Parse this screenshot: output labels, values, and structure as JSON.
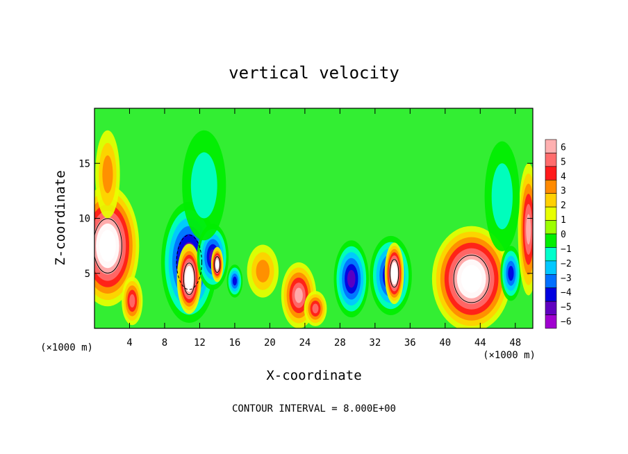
{
  "chart_data": {
    "type": "heatmap",
    "title": "vertical velocity",
    "xlabel": "X-coordinate",
    "ylabel": "Z-coordinate",
    "x_unit_left": "(×1000 m)",
    "x_unit_right": "(×1000 m)",
    "x_ticks": [
      4,
      8,
      12,
      16,
      20,
      24,
      28,
      32,
      36,
      40,
      44,
      48
    ],
    "y_ticks": [
      5,
      10,
      15
    ],
    "xlim": [
      0,
      50
    ],
    "ylim": [
      0,
      20
    ],
    "footer": "CONTOUR INTERVAL = 8.000E+00",
    "colorbar": {
      "labels": [
        "6",
        "5",
        "4",
        "3",
        "2",
        "1",
        "0",
        "−1",
        "−2",
        "−3",
        "−4",
        "−5",
        "−6"
      ],
      "values": [
        6,
        5,
        4,
        3,
        2,
        1,
        0,
        -1,
        -2,
        -3,
        -4,
        -5,
        -6
      ],
      "colors": [
        "#ffb0b0",
        "#ff6c6c",
        "#ff1a1a",
        "#ff8a00",
        "#ffd000",
        "#e8ff00",
        "#9cff00",
        "#00ee00",
        "#00ffcc",
        "#00c8ff",
        "#0070ff",
        "#0000e0",
        "#6000c0",
        "#a000d0"
      ]
    },
    "field_background": "#33ee33",
    "features": [
      {
        "kind": "updraft",
        "x": 1.5,
        "z": 7.5,
        "dx": 3.6,
        "dz": 5.5,
        "peak": 9
      },
      {
        "kind": "updraft",
        "x": 4.3,
        "z": 2.5,
        "dx": 1.2,
        "dz": 2.2,
        "peak": 5
      },
      {
        "kind": "downdraft",
        "x": 10.8,
        "z": 6.0,
        "dx": 3.2,
        "dz": 5.5,
        "peak": -7
      },
      {
        "kind": "core",
        "x": 10.8,
        "z": 4.5,
        "dx": 1.4,
        "dz": 3.2,
        "peak": 9
      },
      {
        "kind": "downdraft",
        "x": 13.5,
        "z": 6.5,
        "dx": 1.8,
        "dz": 3.0,
        "peak": -6
      },
      {
        "kind": "core",
        "x": 14.0,
        "z": 5.8,
        "dx": 0.7,
        "dz": 1.6,
        "peak": 8
      },
      {
        "kind": "downdraft",
        "x": 16.0,
        "z": 4.3,
        "dx": 0.9,
        "dz": 1.5,
        "peak": -5
      },
      {
        "kind": "updraft",
        "x": 19.2,
        "z": 5.2,
        "dx": 1.8,
        "dz": 2.4,
        "peak": 3
      },
      {
        "kind": "updraft",
        "x": 23.3,
        "z": 3.0,
        "dx": 2.0,
        "dz": 3.0,
        "peak": 6
      },
      {
        "kind": "updraft",
        "x": 25.2,
        "z": 1.8,
        "dx": 1.3,
        "dz": 1.6,
        "peak": 5
      },
      {
        "kind": "downdraft",
        "x": 29.3,
        "z": 4.5,
        "dx": 2.0,
        "dz": 3.5,
        "peak": -6
      },
      {
        "kind": "downdraft",
        "x": 33.8,
        "z": 4.8,
        "dx": 2.4,
        "dz": 3.6,
        "peak": -6
      },
      {
        "kind": "core",
        "x": 34.2,
        "z": 5.0,
        "dx": 1.1,
        "dz": 2.8,
        "peak": 9
      },
      {
        "kind": "updraft",
        "x": 43.0,
        "z": 4.5,
        "dx": 4.5,
        "dz": 4.8,
        "peak": 9
      },
      {
        "kind": "downdraft",
        "x": 47.5,
        "z": 5.0,
        "dx": 1.2,
        "dz": 2.5,
        "peak": -5
      },
      {
        "kind": "updraft",
        "x": 49.5,
        "z": 9.0,
        "dx": 1.2,
        "dz": 6.0,
        "peak": 6
      },
      {
        "kind": "plume",
        "x": 1.5,
        "z": 14.0,
        "dx": 1.4,
        "dz": 4.0,
        "peak": 3
      },
      {
        "kind": "plume",
        "x": 12.5,
        "z": 13.0,
        "dx": 2.5,
        "dz": 5.0,
        "peak": -2
      },
      {
        "kind": "plume",
        "x": 46.5,
        "z": 12.0,
        "dx": 2.0,
        "dz": 5.0,
        "peak": -2
      }
    ]
  }
}
